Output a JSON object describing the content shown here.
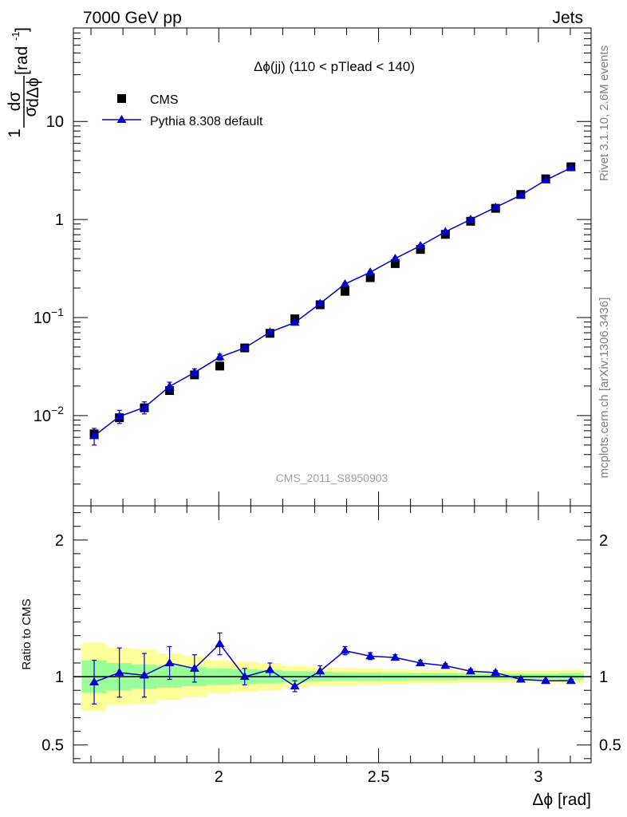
{
  "header": {
    "energy_label": "7000 GeV pp",
    "process_label": "Jets"
  },
  "side": {
    "rivet_label": "Rivet 3.1.10,  2.6M events",
    "source_label": "mcplots.cern.ch [arXiv:1306.3436]"
  },
  "watermark": "CMS_2011_S8950903",
  "colors": {
    "mc": "#0000cc",
    "data": "#000000",
    "band_outer": "#ffff99",
    "band_inner": "#99ff99"
  },
  "chart_data": [
    {
      "type": "line",
      "title": "Δϕ(jj) (110 < pTlead <  140)",
      "ylabel": "1/σ dσ/dΔϕ [rad⁻¹]",
      "ylabel_parts": {
        "lead": "1",
        "num": "dσ",
        "den": "σ",
        "den_d": "dΔϕ",
        "unit": "[rad",
        "unit_exp": "-1",
        "unit_close": "]"
      },
      "xlabel": "Δϕ [rad]",
      "yscale": "log",
      "xlim": [
        1.545,
        3.165
      ],
      "ylim": [
        0.0012,
        90
      ],
      "x_ticks": [
        2,
        2.5,
        3
      ],
      "y_tick_labels": [
        {
          "value": 10,
          "text": "10"
        },
        {
          "value": 1,
          "text": "1"
        },
        {
          "value": 0.1,
          "base": "10",
          "exp": "−1"
        },
        {
          "value": 0.01,
          "base": "10",
          "exp": "−2"
        }
      ],
      "legend_position": "top-left",
      "x": [
        1.61,
        1.689,
        1.767,
        1.846,
        1.924,
        2.003,
        2.081,
        2.16,
        2.238,
        2.317,
        2.395,
        2.474,
        2.552,
        2.631,
        2.709,
        2.788,
        2.866,
        2.945,
        3.023,
        3.102
      ],
      "series": [
        {
          "name": "CMS",
          "marker": "square",
          "values": [
            0.0065,
            0.0095,
            0.012,
            0.018,
            0.026,
            0.032,
            0.049,
            0.069,
            0.097,
            0.135,
            0.185,
            0.255,
            0.355,
            0.495,
            0.705,
            0.96,
            1.3,
            1.8,
            2.6,
            3.45
          ],
          "errors": [
            0.0008,
            0.0009,
            0.001,
            0.0012,
            0.0015,
            0.0016,
            0.0018,
            0.0025,
            0.003,
            0.004,
            0.005,
            0.006,
            0.008,
            0.01,
            0.012,
            0.015,
            0.02,
            0.025,
            0.035,
            0.04
          ]
        },
        {
          "name": "Pythia 8.308 default",
          "marker": "triangle",
          "values": [
            0.0062,
            0.0098,
            0.0121,
            0.0198,
            0.0275,
            0.0395,
            0.049,
            0.071,
            0.089,
            0.139,
            0.22,
            0.29,
            0.4,
            0.54,
            0.75,
            1.0,
            1.33,
            1.77,
            2.52,
            3.37
          ],
          "errors": [
            0.0012,
            0.0015,
            0.0017,
            0.0021,
            0.0025,
            0.0028,
            0.0023,
            0.0028,
            0.0035,
            0.005,
            0.006,
            0.007,
            0.009,
            0.011,
            0.013,
            0.016,
            0.02,
            0.025,
            0.035,
            0.045
          ]
        }
      ]
    },
    {
      "type": "line",
      "title": "",
      "ylabel": "Ratio to CMS",
      "xlabel": "Δϕ [rad]",
      "xlim": [
        1.545,
        3.165
      ],
      "ylim": [
        0.37,
        2.25
      ],
      "y_ticks": [
        0.5,
        1,
        2
      ],
      "y_tick_labels": [
        "0.5",
        "1",
        "2"
      ],
      "x_ticks": [
        2,
        2.5,
        3
      ],
      "x_tick_labels": [
        "2",
        "2.5",
        "3"
      ],
      "reference_line": 1,
      "x": [
        1.61,
        1.689,
        1.767,
        1.846,
        1.924,
        2.003,
        2.081,
        2.16,
        2.238,
        2.317,
        2.395,
        2.474,
        2.552,
        2.631,
        2.709,
        2.788,
        2.866,
        2.945,
        3.023,
        3.102
      ],
      "bands": {
        "edges": [
          1.571,
          1.649,
          1.728,
          1.806,
          1.885,
          1.963,
          2.042,
          2.12,
          2.199,
          2.277,
          2.356,
          2.434,
          2.513,
          2.591,
          2.67,
          2.749,
          2.827,
          2.906,
          2.984,
          3.063,
          3.142
        ],
        "outer": [
          0.25,
          0.21,
          0.2,
          0.17,
          0.15,
          0.12,
          0.11,
          0.1,
          0.08,
          0.07,
          0.065,
          0.06,
          0.055,
          0.05,
          0.05,
          0.045,
          0.045,
          0.045,
          0.045,
          0.05
        ],
        "inner": [
          0.12,
          0.1,
          0.09,
          0.08,
          0.07,
          0.06,
          0.055,
          0.05,
          0.04,
          0.035,
          0.03,
          0.03,
          0.028,
          0.025,
          0.025,
          0.022,
          0.022,
          0.022,
          0.022,
          0.025
        ]
      },
      "series": [
        {
          "name": "Pythia 8.308 default",
          "marker": "triangle",
          "values": [
            0.96,
            1.03,
            1.01,
            1.1,
            1.06,
            1.24,
            1.0,
            1.05,
            0.93,
            1.04,
            1.19,
            1.15,
            1.14,
            1.1,
            1.08,
            1.04,
            1.03,
            0.98,
            0.97,
            0.97
          ],
          "errors": [
            0.16,
            0.18,
            0.16,
            0.12,
            0.1,
            0.08,
            0.06,
            0.05,
            0.04,
            0.04,
            0.03,
            0.025,
            0.02,
            0.02,
            0.015,
            0.015,
            0.015,
            0.01,
            0.01,
            0.01
          ]
        }
      ]
    }
  ]
}
